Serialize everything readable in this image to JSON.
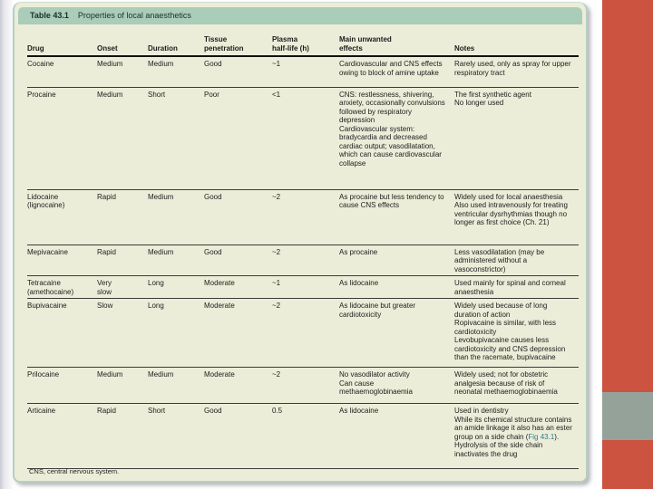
{
  "page": {
    "footnote": "CNS, central nervous system."
  },
  "colors": {
    "accent_red": "#cb5340",
    "accent_gray": "#95a29a",
    "card_background": "#ecedd9",
    "title_bar_teal": "#a9cdb9",
    "reference_link_teal": "#2a7f8e"
  },
  "table": {
    "title_label": "Table 43.1",
    "title_text": "Properties of local anaesthetics",
    "columns": [
      "Drug",
      "Onset",
      "Duration",
      "Tissue\npenetration",
      "Plasma\nhalf-life (h)",
      "Main unwanted\neffects",
      "Notes"
    ],
    "rows": [
      {
        "drug": "Cocaine",
        "onset": "Medium",
        "duration": "Medium",
        "tissue_penetration": "Good",
        "plasma_half_life": "~1",
        "effects": "Cardiovascular and CNS effects owing to block of amine uptake",
        "notes": "Rarely used, only as spray for upper respiratory tract"
      },
      {
        "drug": "Procaine",
        "onset": "Medium",
        "duration": "Short",
        "tissue_penetration": "Poor",
        "plasma_half_life": "<1",
        "effects": "CNS: restlessness, shivering, anxiety, occasionally convulsions followed by respiratory depression\nCardiovascular system: bradycardia and decreased cardiac output; vasodilatation, which can cause cardiovascular collapse",
        "notes": "The first synthetic agent\nNo longer used"
      },
      {
        "drug": "Lidocaine\n(lignocaine)",
        "onset": "Rapid",
        "duration": "Medium",
        "tissue_penetration": "Good",
        "plasma_half_life": "~2",
        "effects": "As procaine but less tendency to cause CNS effects",
        "notes": "Widely used for local anaesthesia\nAlso used intravenously for treating ventricular dysrhythmias though no longer as first choice (Ch. 21)"
      },
      {
        "drug": "Mepivacaine",
        "onset": "Rapid",
        "duration": "Medium",
        "tissue_penetration": "Good",
        "plasma_half_life": "~2",
        "effects": "As procaine",
        "notes": "Less vasodilatation (may be administered without a vasoconstrictor)"
      },
      {
        "drug": "Tetracaine\n(amethocaine)",
        "onset": "Very\nslow",
        "duration": "Long",
        "tissue_penetration": "Moderate",
        "plasma_half_life": "~1",
        "effects": "As lidocaine",
        "notes": "Used mainly for spinal and corneal anaesthesia"
      },
      {
        "drug": "Bupivacaine",
        "onset": "Slow",
        "duration": "Long",
        "tissue_penetration": "Moderate",
        "plasma_half_life": "~2",
        "effects": "As lidocaine but greater cardiotoxicity",
        "notes": "Widely used because of long duration of action\nRopivacaine is similar, with less cardiotoxicity\nLevobupivacaine causes less cardiotoxicity and CNS depression than the racemate, bupivacaine"
      },
      {
        "drug": "Prilocaine",
        "onset": "Medium",
        "duration": "Medium",
        "tissue_penetration": "Moderate",
        "plasma_half_life": "~2",
        "effects": "No vasodilator activity\nCan cause methaemoglobinaemia",
        "notes": "Widely used; not for obstetric analgesia because of risk of neonatal methaemoglobinaemia"
      },
      {
        "drug": "Articaine",
        "onset": "Rapid",
        "duration": "Short",
        "tissue_penetration": "Good",
        "plasma_half_life": "0.5",
        "effects": "As lidocaine",
        "notes_pre": "Used in dentistry\nWhile its chemical structure contains an amide linkage it also has an ester group on a side chain (",
        "notes_link": "Fig 43.1",
        "notes_post": ").\nHydrolysis of the side chain inactivates the drug"
      }
    ]
  }
}
